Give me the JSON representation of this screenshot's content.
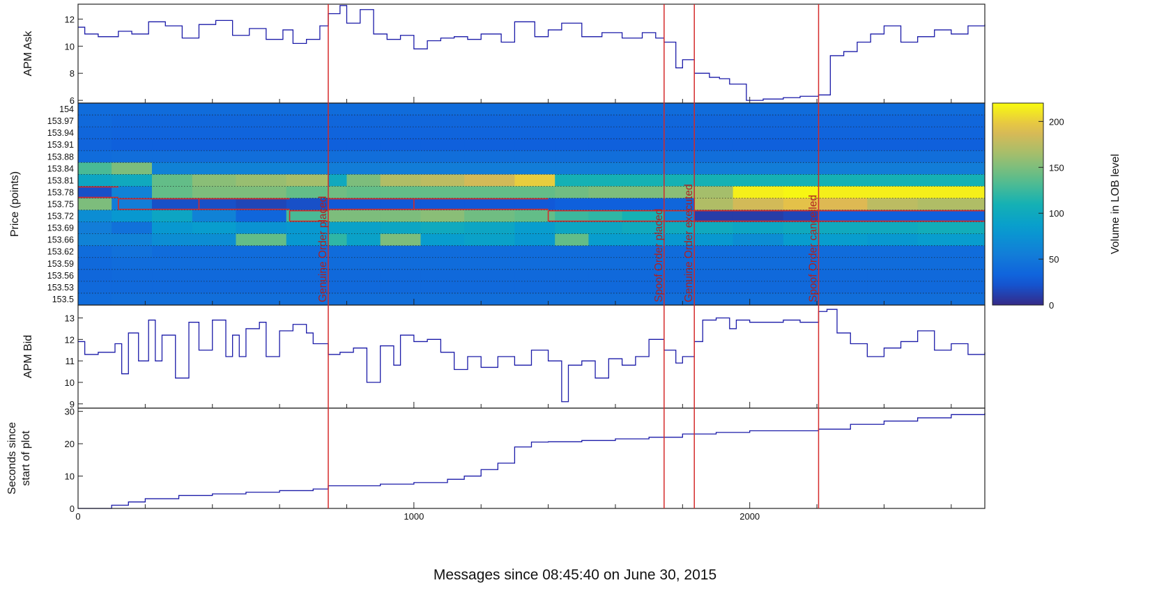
{
  "x_axis_label": "Messages since 08:45:40 on June 30, 2015",
  "x_range": [
    0,
    2700
  ],
  "x_tick_labels": [
    {
      "value": 0,
      "label": "0"
    },
    {
      "value": 1000,
      "label": "1000"
    },
    {
      "value": 2000,
      "label": "2000"
    }
  ],
  "events": [
    {
      "x": 745,
      "label": "Genuine Order placed"
    },
    {
      "x": 1745,
      "label": "Spoof Order placed"
    },
    {
      "x": 1835,
      "label": "Genuine Order executed"
    },
    {
      "x": 2205,
      "label": "Spoof Order cancelled"
    }
  ],
  "colors": {
    "line": "#1a1aa8",
    "event_line": "#d42a2a",
    "event_text": "#b02020",
    "frame": "#222222"
  },
  "colorbar": {
    "label": "Volume in LOB level",
    "min": 0,
    "max": 220,
    "tick_labels": [
      {
        "value": 0,
        "label": "0"
      },
      {
        "value": 50,
        "label": "50"
      },
      {
        "value": 100,
        "label": "100"
      },
      {
        "value": 150,
        "label": "150"
      },
      {
        "value": 200,
        "label": "200"
      }
    ],
    "colormap": "parula"
  },
  "chart_data": [
    {
      "type": "line",
      "ylabel": "APM Ask",
      "ylim": [
        5.8,
        13.1
      ],
      "y_tick_labels": [
        {
          "value": 6,
          "label": "6"
        },
        {
          "value": 8,
          "label": "8"
        },
        {
          "value": 10,
          "label": "10"
        },
        {
          "value": 12,
          "label": "12"
        }
      ],
      "x": [
        0,
        20,
        60,
        120,
        160,
        210,
        260,
        310,
        360,
        410,
        460,
        510,
        560,
        610,
        640,
        680,
        720,
        745,
        780,
        800,
        840,
        880,
        920,
        960,
        1000,
        1040,
        1080,
        1120,
        1160,
        1200,
        1260,
        1300,
        1360,
        1400,
        1440,
        1500,
        1560,
        1620,
        1680,
        1720,
        1745,
        1780,
        1800,
        1835,
        1880,
        1910,
        1940,
        1990,
        2040,
        2100,
        2150,
        2205,
        2240,
        2280,
        2320,
        2360,
        2400,
        2450,
        2500,
        2550,
        2600,
        2650,
        2700
      ],
      "y": [
        11.4,
        10.9,
        10.7,
        11.1,
        10.9,
        11.8,
        11.5,
        10.6,
        11.6,
        11.9,
        10.8,
        11.3,
        10.5,
        11.2,
        10.2,
        10.5,
        11.5,
        12.4,
        13.0,
        11.7,
        12.7,
        10.9,
        10.5,
        10.8,
        9.8,
        10.4,
        10.6,
        10.7,
        10.5,
        10.9,
        10.3,
        11.8,
        10.7,
        11.2,
        11.7,
        10.7,
        11.0,
        10.6,
        11.0,
        10.6,
        10.3,
        8.4,
        9.0,
        8.0,
        7.7,
        7.6,
        7.2,
        6.0,
        6.1,
        6.2,
        6.3,
        6.4,
        9.3,
        9.6,
        10.3,
        10.9,
        11.5,
        10.3,
        10.7,
        11.2,
        10.9,
        11.5,
        11.6
      ]
    },
    {
      "type": "heatmap",
      "ylabel": "Price (points)",
      "x_range": [
        0,
        2700
      ],
      "y_categories": [
        "154",
        "153.97",
        "153.94",
        "153.91",
        "153.88",
        "153.84",
        "153.81",
        "153.78",
        "153.75",
        "153.72",
        "153.69",
        "153.66",
        "153.62",
        "153.59",
        "153.56",
        "153.53",
        "153.5"
      ],
      "x_bins": [
        0,
        100,
        220,
        340,
        470,
        620,
        745,
        800,
        900,
        1020,
        1150,
        1300,
        1420,
        1520,
        1620,
        1745,
        1835,
        1950,
        2100,
        2205,
        2350,
        2500,
        2700
      ],
      "values": [
        [
          40,
          40,
          40,
          40,
          40,
          40,
          40,
          40,
          40,
          40,
          40,
          40,
          40,
          40,
          40,
          40,
          40,
          40,
          40,
          40,
          40,
          40
        ],
        [
          38,
          35,
          35,
          35,
          35,
          35,
          35,
          35,
          35,
          35,
          35,
          35,
          35,
          35,
          35,
          35,
          35,
          35,
          35,
          35,
          35,
          35
        ],
        [
          35,
          33,
          33,
          33,
          33,
          33,
          33,
          33,
          33,
          33,
          33,
          33,
          33,
          33,
          33,
          33,
          33,
          33,
          33,
          33,
          33,
          33
        ],
        [
          33,
          30,
          30,
          30,
          30,
          30,
          30,
          30,
          30,
          30,
          30,
          30,
          30,
          30,
          30,
          30,
          30,
          30,
          30,
          30,
          30,
          30
        ],
        [
          40,
          42,
          42,
          42,
          42,
          42,
          42,
          42,
          42,
          42,
          42,
          42,
          42,
          42,
          42,
          42,
          42,
          42,
          42,
          42,
          42,
          42
        ],
        [
          130,
          150,
          60,
          60,
          60,
          60,
          55,
          55,
          55,
          55,
          55,
          55,
          55,
          55,
          55,
          55,
          55,
          55,
          55,
          55,
          55,
          55
        ],
        [
          95,
          100,
          140,
          155,
          160,
          165,
          100,
          150,
          170,
          175,
          185,
          200,
          110,
          110,
          110,
          110,
          110,
          110,
          110,
          110,
          110,
          110
        ],
        [
          20,
          60,
          140,
          150,
          150,
          140,
          145,
          140,
          140,
          140,
          140,
          140,
          145,
          150,
          150,
          155,
          165,
          215,
          218,
          215,
          215,
          215
        ],
        [
          150,
          55,
          20,
          20,
          15,
          20,
          25,
          25,
          25,
          25,
          25,
          25,
          30,
          30,
          30,
          35,
          170,
          185,
          195,
          190,
          175,
          170
        ],
        [
          70,
          80,
          95,
          60,
          35,
          130,
          150,
          150,
          150,
          155,
          145,
          140,
          125,
          120,
          110,
          60,
          10,
          10,
          15,
          30,
          30,
          30
        ],
        [
          55,
          45,
          80,
          85,
          75,
          80,
          90,
          90,
          95,
          100,
          95,
          85,
          95,
          95,
          100,
          100,
          100,
          95,
          100,
          100,
          100,
          105
        ],
        [
          60,
          60,
          70,
          70,
          140,
          80,
          120,
          90,
          150,
          85,
          90,
          80,
          140,
          85,
          85,
          80,
          80,
          70,
          85,
          85,
          80,
          85
        ],
        [
          40,
          45,
          40,
          40,
          40,
          40,
          40,
          40,
          40,
          40,
          40,
          40,
          40,
          40,
          40,
          40,
          40,
          40,
          40,
          40,
          40,
          40
        ],
        [
          38,
          40,
          40,
          40,
          40,
          40,
          40,
          40,
          40,
          40,
          40,
          40,
          40,
          40,
          40,
          40,
          40,
          40,
          40,
          40,
          40,
          40
        ],
        [
          36,
          38,
          38,
          38,
          38,
          38,
          38,
          38,
          38,
          38,
          38,
          38,
          38,
          38,
          38,
          38,
          38,
          38,
          38,
          38,
          38,
          38
        ],
        [
          38,
          38,
          38,
          38,
          38,
          38,
          38,
          38,
          38,
          38,
          38,
          38,
          38,
          38,
          38,
          38,
          38,
          38,
          38,
          38,
          38,
          38
        ],
        [
          40,
          42,
          42,
          42,
          42,
          42,
          42,
          42,
          42,
          42,
          42,
          42,
          42,
          42,
          42,
          42,
          42,
          42,
          42,
          42,
          42,
          42
        ]
      ],
      "best_quote_path": {
        "x": [
          0,
          120,
          360,
          630,
          745,
          1000,
          1400,
          1745,
          2700
        ],
        "level": [
          "153.78",
          "153.75",
          "153.75",
          "153.72",
          "153.75",
          "153.75",
          "153.72",
          "153.72",
          "153.72"
        ]
      }
    },
    {
      "type": "line",
      "ylabel": "APM Bid",
      "ylim": [
        8.8,
        13.6
      ],
      "y_tick_labels": [
        {
          "value": 9,
          "label": "9"
        },
        {
          "value": 10,
          "label": "10"
        },
        {
          "value": 11,
          "label": "11"
        },
        {
          "value": 12,
          "label": "12"
        },
        {
          "value": 13,
          "label": "13"
        }
      ],
      "x": [
        0,
        20,
        60,
        110,
        130,
        150,
        180,
        210,
        230,
        250,
        290,
        330,
        360,
        400,
        440,
        460,
        480,
        500,
        540,
        560,
        600,
        640,
        680,
        700,
        745,
        780,
        820,
        860,
        900,
        940,
        960,
        1000,
        1040,
        1080,
        1120,
        1160,
        1200,
        1250,
        1300,
        1350,
        1400,
        1440,
        1460,
        1500,
        1540,
        1580,
        1620,
        1660,
        1700,
        1745,
        1780,
        1800,
        1835,
        1860,
        1900,
        1940,
        1960,
        2000,
        2100,
        2150,
        2205,
        2230,
        2260,
        2300,
        2350,
        2400,
        2450,
        2500,
        2550,
        2600,
        2650,
        2700
      ],
      "y": [
        11.9,
        11.3,
        11.4,
        11.8,
        10.4,
        12.3,
        11.0,
        12.9,
        11.0,
        12.2,
        10.2,
        12.8,
        11.5,
        12.9,
        11.2,
        12.2,
        11.2,
        12.5,
        12.8,
        11.2,
        12.4,
        12.7,
        12.3,
        11.8,
        11.3,
        11.4,
        11.6,
        10.0,
        11.7,
        10.8,
        12.2,
        11.9,
        12.0,
        11.4,
        10.6,
        11.2,
        10.7,
        11.2,
        10.8,
        11.5,
        11.0,
        9.1,
        10.8,
        11.0,
        10.2,
        11.1,
        10.8,
        11.2,
        12.0,
        11.5,
        10.9,
        11.2,
        11.9,
        12.9,
        13.0,
        12.5,
        12.9,
        12.8,
        12.9,
        12.8,
        13.3,
        13.4,
        12.3,
        11.8,
        11.2,
        11.6,
        11.9,
        12.4,
        11.5,
        11.8,
        11.3,
        11.4
      ]
    },
    {
      "type": "line",
      "ylabel": "Seconds since start of plot",
      "ylim": [
        0,
        31
      ],
      "y_tick_labels": [
        {
          "value": 0,
          "label": "0"
        },
        {
          "value": 10,
          "label": "10"
        },
        {
          "value": 20,
          "label": "20"
        },
        {
          "value": 30,
          "label": "30"
        }
      ],
      "x": [
        0,
        60,
        100,
        150,
        200,
        300,
        400,
        500,
        600,
        700,
        745,
        800,
        900,
        1000,
        1100,
        1150,
        1200,
        1250,
        1300,
        1350,
        1400,
        1500,
        1600,
        1700,
        1745,
        1800,
        1900,
        2000,
        2100,
        2205,
        2300,
        2400,
        2500,
        2600,
        2700
      ],
      "y": [
        0,
        0,
        1,
        2,
        3,
        4,
        4.5,
        5,
        5.5,
        6,
        7,
        7,
        7.5,
        8,
        9,
        10,
        12,
        14,
        19,
        20.5,
        20.6,
        21,
        21.5,
        22,
        22,
        23,
        23.5,
        24,
        24,
        24.5,
        26,
        27,
        28,
        29,
        29.5
      ]
    }
  ]
}
